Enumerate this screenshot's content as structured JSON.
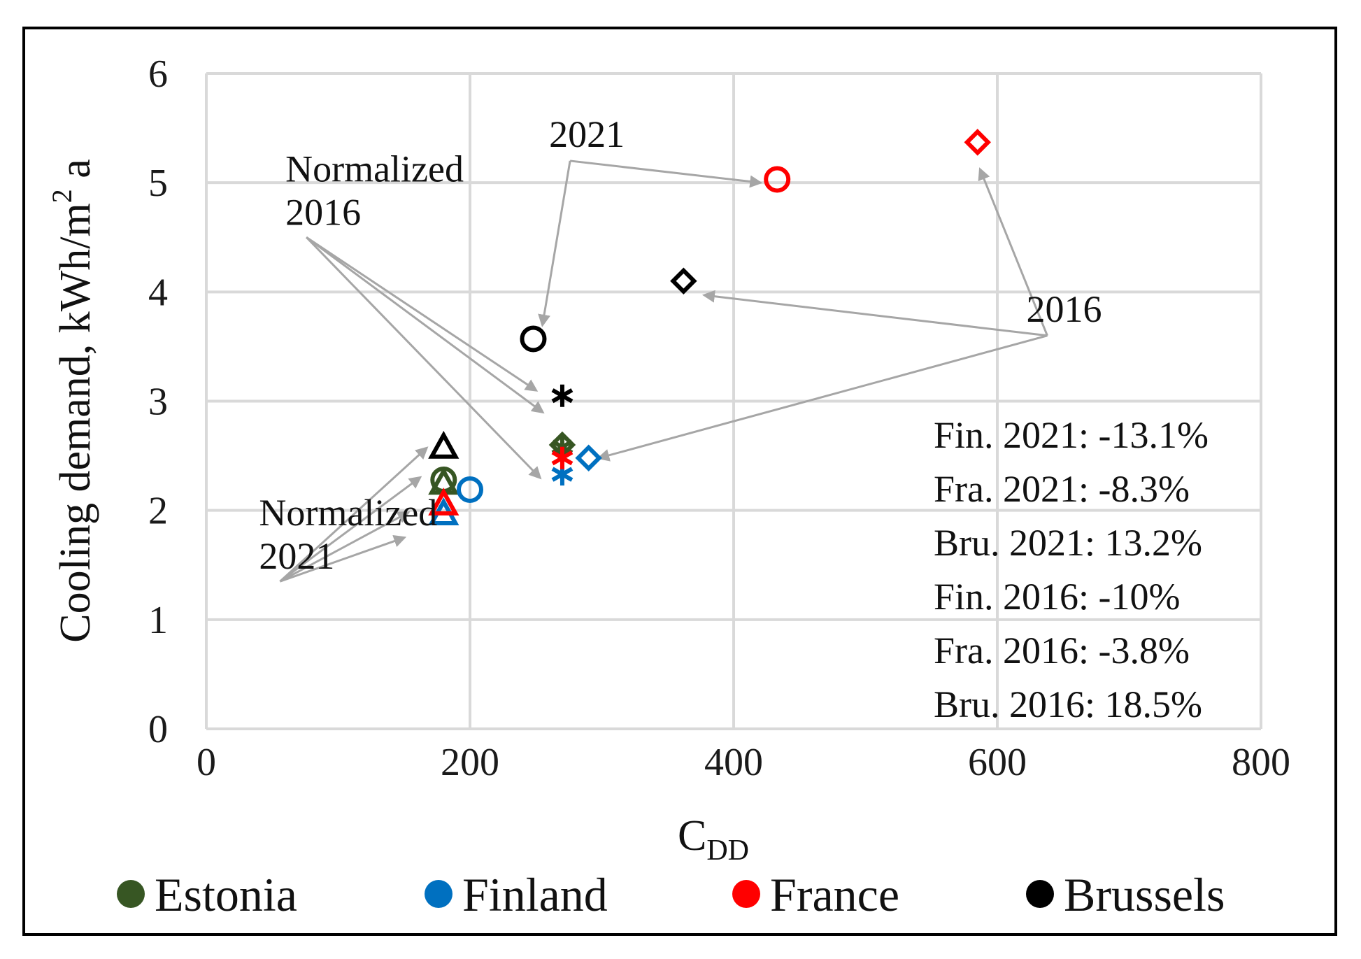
{
  "chart_data": {
    "type": "scatter",
    "xlabel": "C",
    "xlabel_sub": "DD",
    "ylabel": "Cooling demand,  kWh/m",
    "ylabel_sup": "2",
    "ylabel_tail": " a",
    "xlim": [
      0,
      800
    ],
    "ylim": [
      0,
      6
    ],
    "x_ticks": [
      "0",
      "200",
      "400",
      "600",
      "800"
    ],
    "y_ticks": [
      "0",
      "1",
      "2",
      "3",
      "4",
      "5",
      "6"
    ],
    "grid": true,
    "legend_position": "bottom",
    "legend": [
      {
        "name": "Estonia",
        "color": "#375623"
      },
      {
        "name": "Finland",
        "color": "#0070c0"
      },
      {
        "name": "France",
        "color": "#ff0000"
      },
      {
        "name": "Brussels",
        "color": "#000000"
      }
    ],
    "points": [
      {
        "series": "Estonia",
        "marker": "triangle",
        "x": 180,
        "y": 2.25
      },
      {
        "series": "Estonia",
        "marker": "circle",
        "x": 180,
        "y": 2.28
      },
      {
        "series": "Estonia",
        "marker": "asterisk",
        "x": 270,
        "y": 2.58
      },
      {
        "series": "Estonia",
        "marker": "diamond",
        "x": 270,
        "y": 2.6
      },
      {
        "series": "Finland",
        "marker": "triangle",
        "x": 180,
        "y": 1.97
      },
      {
        "series": "Finland",
        "marker": "circle",
        "x": 200,
        "y": 2.19
      },
      {
        "series": "Finland",
        "marker": "asterisk",
        "x": 270,
        "y": 2.33
      },
      {
        "series": "Finland",
        "marker": "diamond",
        "x": 290,
        "y": 2.48
      },
      {
        "series": "France",
        "marker": "triangle",
        "x": 180,
        "y": 2.06
      },
      {
        "series": "France",
        "marker": "asterisk",
        "x": 270,
        "y": 2.48
      },
      {
        "series": "France",
        "marker": "circle",
        "x": 433,
        "y": 5.03
      },
      {
        "series": "France",
        "marker": "diamond",
        "x": 585,
        "y": 5.37
      },
      {
        "series": "Brussels",
        "marker": "triangle",
        "x": 180,
        "y": 2.58
      },
      {
        "series": "Brussels",
        "marker": "circle",
        "x": 248,
        "y": 3.57
      },
      {
        "series": "Brussels",
        "marker": "asterisk",
        "x": 270,
        "y": 3.05
      },
      {
        "series": "Brussels",
        "marker": "diamond",
        "x": 362,
        "y": 4.1
      }
    ],
    "annotations": [
      {
        "lines": [
          "2021"
        ],
        "x": 260,
        "y": 5.2,
        "targets": [
          [
            420,
            5.0
          ],
          [
            255,
            3.7
          ]
        ]
      },
      {
        "lines": [
          "Normalized",
          "2016"
        ],
        "x": 60,
        "y": 4.5,
        "targets": [
          [
            250,
            3.1
          ],
          [
            255,
            2.9
          ],
          [
            253,
            2.3
          ]
        ]
      },
      {
        "lines": [
          "2016"
        ],
        "x": 622,
        "y": 3.6,
        "targets": [
          [
            587,
            5.12
          ],
          [
            378,
            3.97
          ],
          [
            298,
            2.48
          ]
        ]
      },
      {
        "lines": [
          "Normalized",
          "2021"
        ],
        "x": 40,
        "y": 1.35,
        "targets": [
          [
            167,
            2.57
          ],
          [
            162,
            2.3
          ],
          [
            153,
            1.98
          ],
          [
            150,
            1.75
          ]
        ]
      }
    ],
    "stats": [
      "Fin. 2021: -13.1%",
      "Fra. 2021: -8.3%",
      "Bru. 2021: 13.2%",
      "Fin. 2016: -10%",
      "Fra. 2016: -3.8%",
      "Bru. 2016: 18.5%"
    ]
  }
}
